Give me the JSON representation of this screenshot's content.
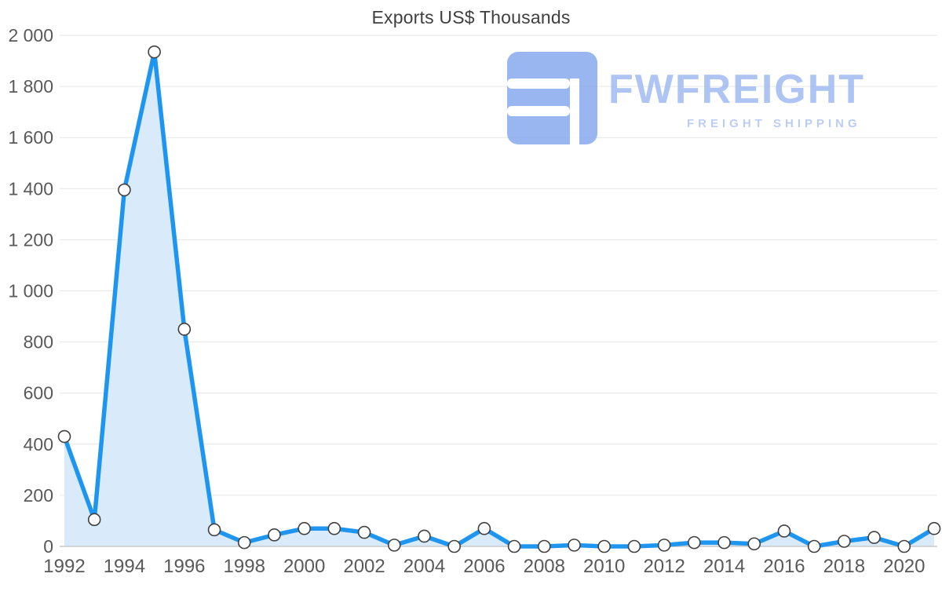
{
  "chart_data": {
    "type": "area",
    "title": "Exports US$ Thousands",
    "x": [
      1992,
      1993,
      1994,
      1995,
      1996,
      1997,
      1998,
      1999,
      2000,
      2001,
      2002,
      2003,
      2004,
      2005,
      2006,
      2007,
      2008,
      2009,
      2010,
      2011,
      2012,
      2013,
      2014,
      2015,
      2016,
      2017,
      2018,
      2019,
      2020,
      2021
    ],
    "series": [
      {
        "name": "Exports US$ Thousands",
        "values": [
          430,
          105,
          1395,
          1935,
          850,
          65,
          15,
          45,
          70,
          70,
          55,
          5,
          40,
          0,
          70,
          0,
          0,
          5,
          0,
          0,
          5,
          15,
          15,
          10,
          60,
          0,
          20,
          35,
          0,
          70
        ]
      }
    ],
    "xlabel": "",
    "ylabel": "",
    "ylim": [
      0,
      2000
    ],
    "y_ticks": [
      {
        "value": 0,
        "label": "0"
      },
      {
        "value": 200,
        "label": "200"
      },
      {
        "value": 400,
        "label": "400"
      },
      {
        "value": 600,
        "label": "600"
      },
      {
        "value": 800,
        "label": "800"
      },
      {
        "value": 1000,
        "label": "1 000"
      },
      {
        "value": 1200,
        "label": "1 200"
      },
      {
        "value": 1400,
        "label": "1 400"
      },
      {
        "value": 1600,
        "label": "1 600"
      },
      {
        "value": 1800,
        "label": "1 800"
      },
      {
        "value": 2000,
        "label": "2 000"
      }
    ],
    "x_ticks": [
      1992,
      1994,
      1996,
      1998,
      2000,
      2002,
      2004,
      2006,
      2008,
      2010,
      2012,
      2014,
      2016,
      2018,
      2020
    ],
    "grid": "horizontal",
    "legend": "none",
    "line_color": "#1e96f0",
    "area_fill": "#d9eafb",
    "marker": {
      "fill": "#ffffff",
      "stroke": "#404040"
    },
    "grid_color": "#e6e6e6",
    "axis_line_color": "#c9c9c9",
    "tick_label_color": "#595959"
  },
  "watermark": {
    "brand": "FWFREIGHT",
    "tagline": "FREIGHT SHIPPING",
    "text_color": "#a3bdf1",
    "mark_color": "#8badee"
  }
}
